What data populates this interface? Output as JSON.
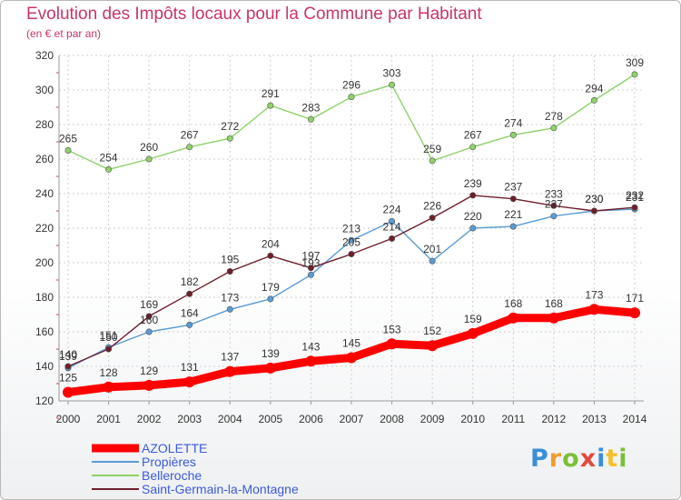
{
  "chart_data": {
    "type": "line",
    "title": "Evolution des Impôts locaux pour la Commune par Habitant",
    "subtitle": "(en € et par an)",
    "x": [
      2000,
      2001,
      2002,
      2003,
      2004,
      2005,
      2006,
      2007,
      2008,
      2009,
      2010,
      2011,
      2012,
      2013,
      2014
    ],
    "ylim": [
      120,
      320
    ],
    "yticks": [
      120,
      140,
      160,
      180,
      200,
      220,
      240,
      260,
      280,
      300,
      320
    ],
    "grid": true,
    "legend_position": "bottom-left",
    "series": [
      {
        "name": "AZOLETTE",
        "color": "#ff0000",
        "values": [
          125,
          128,
          129,
          131,
          137,
          139,
          143,
          145,
          153,
          152,
          159,
          168,
          168,
          173,
          171
        ]
      },
      {
        "name": "Propières",
        "color": "#5b9bd5",
        "values": [
          139,
          151,
          160,
          164,
          173,
          179,
          193,
          213,
          224,
          201,
          220,
          221,
          227,
          230,
          231
        ]
      },
      {
        "name": "Belleroche",
        "color": "#8fd16a",
        "values": [
          265,
          254,
          260,
          267,
          272,
          291,
          283,
          296,
          303,
          259,
          267,
          274,
          278,
          294,
          309
        ]
      },
      {
        "name": "Saint-Germain-la-Montagne",
        "color": "#6e1f2b",
        "values": [
          140,
          150,
          169,
          182,
          195,
          204,
          197,
          205,
          214,
          226,
          239,
          237,
          233,
          230,
          232
        ]
      }
    ]
  },
  "logo_text": "Proxiti"
}
